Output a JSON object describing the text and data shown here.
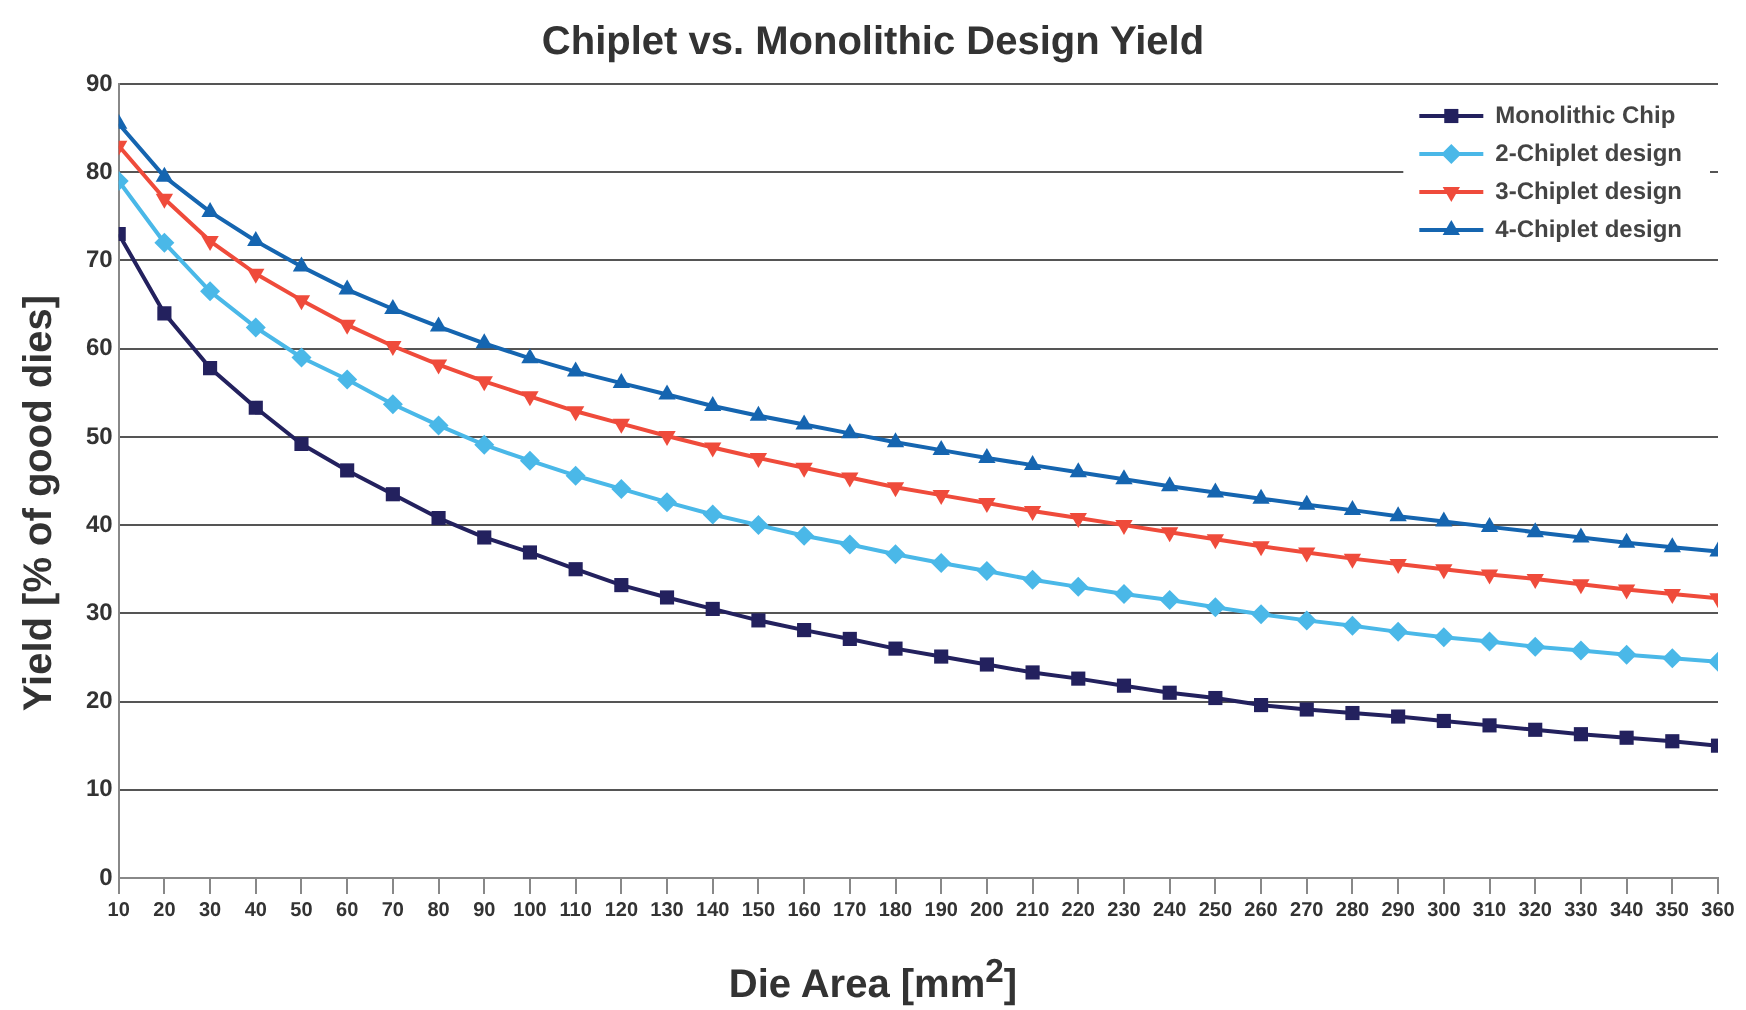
{
  "chart_data": {
    "type": "line",
    "title": "Chiplet vs. Monolithic Design Yield",
    "xlabel": "Die Area [mm$^{2}$]",
    "ylabel": "Yield [% of good dies]",
    "x": [
      10,
      20,
      30,
      40,
      50,
      60,
      70,
      80,
      90,
      100,
      110,
      120,
      130,
      140,
      150,
      160,
      170,
      180,
      190,
      200,
      210,
      220,
      230,
      240,
      250,
      260,
      270,
      280,
      290,
      300,
      310,
      320,
      330,
      340,
      350,
      360
    ],
    "xlim": [
      10,
      360
    ],
    "xticks": [
      10,
      20,
      30,
      40,
      50,
      60,
      70,
      80,
      90,
      100,
      110,
      120,
      130,
      140,
      150,
      160,
      170,
      180,
      190,
      200,
      210,
      220,
      230,
      240,
      250,
      260,
      270,
      280,
      290,
      300,
      310,
      320,
      330,
      340,
      350,
      360
    ],
    "ylim": [
      0,
      90
    ],
    "yticks": [
      0,
      10,
      20,
      30,
      40,
      50,
      60,
      70,
      80,
      90
    ],
    "grid": "y",
    "legend": "top right",
    "line_style": "solid",
    "series": [
      {
        "name": "Monolithic Chip",
        "color": "#23215e",
        "marker": "square",
        "values": [
          73,
          64,
          57.8,
          53.3,
          49.2,
          46.2,
          43.5,
          40.8,
          38.6,
          36.9,
          35,
          33.2,
          31.8,
          30.5,
          29.2,
          28.1,
          27.1,
          26,
          25.1,
          24.2,
          23.3,
          22.6,
          21.8,
          21,
          20.4,
          19.6,
          19.1,
          18.7,
          18.3,
          17.8,
          17.3,
          16.8,
          16.3,
          15.9,
          15.5,
          15
        ]
      },
      {
        "name": "2-Chiplet design",
        "color": "#4ab8e8",
        "marker": "diamond",
        "values": [
          79,
          72,
          66.5,
          62.4,
          59,
          56.5,
          53.7,
          51.3,
          49.1,
          47.3,
          45.6,
          44.1,
          42.6,
          41.2,
          40,
          38.8,
          37.8,
          36.7,
          35.7,
          34.8,
          33.8,
          33,
          32.2,
          31.5,
          30.7,
          29.9,
          29.2,
          28.6,
          27.9,
          27.3,
          26.8,
          26.2,
          25.8,
          25.3,
          24.9,
          24.5
        ]
      },
      {
        "name": "3-Chiplet design",
        "color": "#ef4b3b",
        "marker": "triangle-down",
        "values": [
          83,
          77,
          72.2,
          68.5,
          65.5,
          62.7,
          60.3,
          58.2,
          56.3,
          54.6,
          52.9,
          51.5,
          50.1,
          48.8,
          47.6,
          46.5,
          45.4,
          44.3,
          43.4,
          42.5,
          41.6,
          40.8,
          40,
          39.2,
          38.4,
          37.6,
          36.9,
          36.2,
          35.6,
          35,
          34.4,
          33.9,
          33.3,
          32.7,
          32.2,
          31.7
        ]
      },
      {
        "name": "4-Chiplet design",
        "color": "#1565b0",
        "marker": "triangle",
        "values": [
          85.5,
          79.5,
          75.5,
          72.2,
          69.3,
          66.7,
          64.5,
          62.5,
          60.6,
          58.9,
          57.4,
          56.1,
          54.8,
          53.5,
          52.4,
          51.4,
          50.4,
          49.4,
          48.5,
          47.6,
          46.8,
          46,
          45.2,
          44.4,
          43.7,
          43,
          42.3,
          41.7,
          41,
          40.4,
          39.8,
          39.2,
          38.6,
          38,
          37.5,
          37
        ]
      }
    ]
  }
}
